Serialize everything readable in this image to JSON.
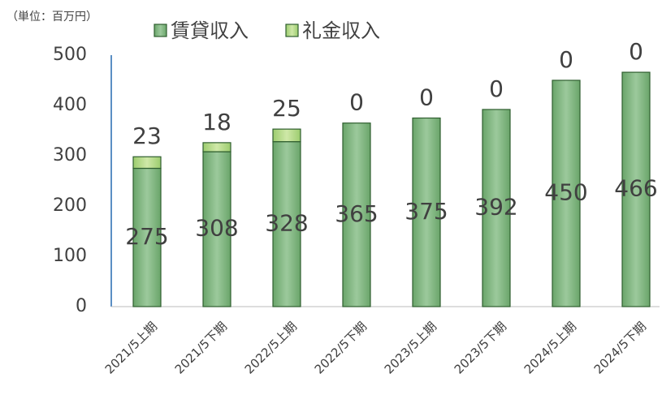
{
  "chart_data": {
    "type": "stacked_bar",
    "unit_label": "（単位：百万円）",
    "categories": [
      "2021/5上期",
      "2021/5下期",
      "2022/5上期",
      "2022/5下期",
      "2023/5上期",
      "2023/5下期",
      "2024/5上期",
      "2024/5下期"
    ],
    "series": [
      {
        "name": "賃貸収入",
        "color": "#7db37d",
        "values": [
          275,
          308,
          328,
          365,
          375,
          392,
          450,
          466
        ]
      },
      {
        "name": "礼金収入",
        "color": "#b3d98c",
        "values": [
          23,
          18,
          25,
          0,
          0,
          0,
          0,
          0
        ]
      }
    ],
    "ylim": [
      0,
      500
    ],
    "yticks": [
      0,
      100,
      200,
      300,
      400,
      500
    ],
    "grid": false
  }
}
